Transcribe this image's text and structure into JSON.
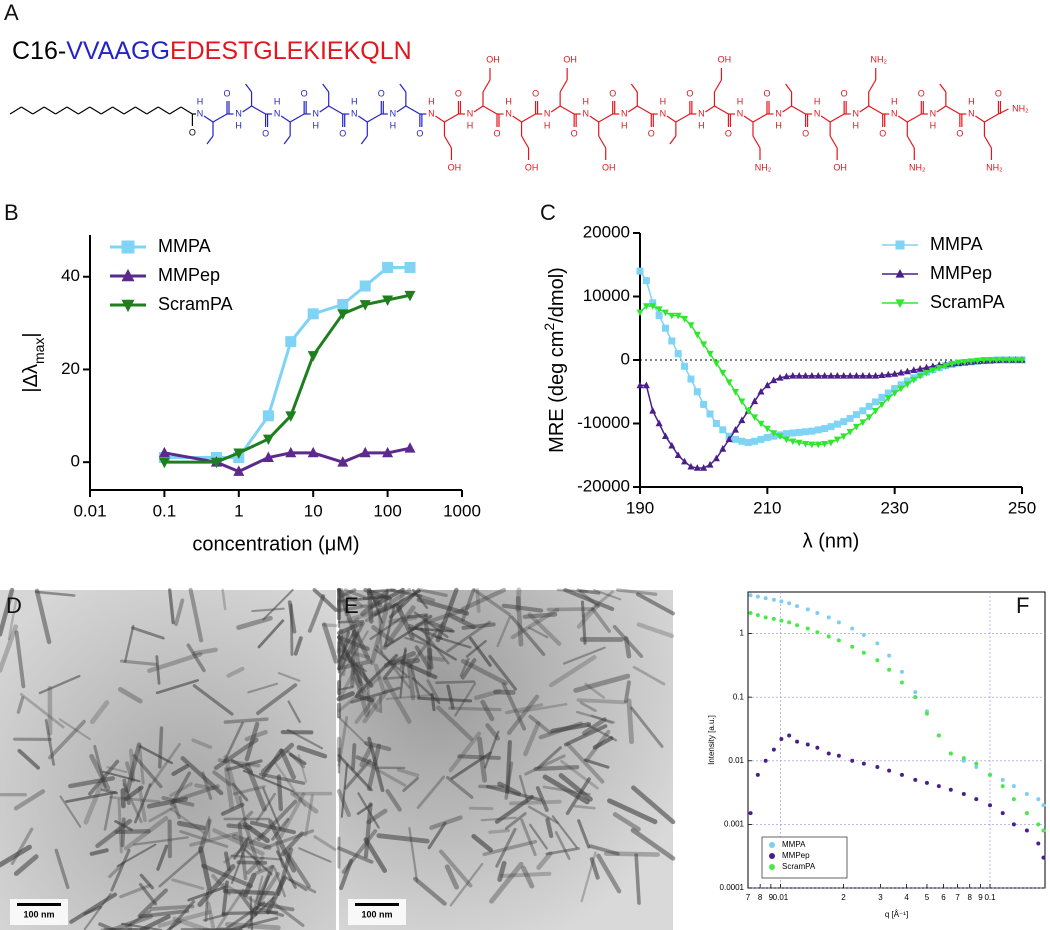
{
  "panel_labels": [
    "A",
    "B",
    "C",
    "D",
    "E",
    "F"
  ],
  "sequence": {
    "parts": [
      {
        "text": "C16-",
        "color": "#000000"
      },
      {
        "text": "VVAAGG",
        "color": "#2323c8"
      },
      {
        "text": "EDESTGLEKIEKQLN",
        "color": "#e3161d"
      }
    ]
  },
  "structure": {
    "backbone": {
      "n": "N",
      "h": "H",
      "o": "O"
    },
    "terminal_label": "NH₂",
    "side_chain_labels": [
      null,
      null,
      null,
      null,
      null,
      null,
      "OH",
      "OH",
      "OH",
      "OH",
      "OH",
      null,
      null,
      "OH",
      "NH₂",
      null,
      "OH",
      "NH₂",
      "NH₂",
      null,
      "NH₂"
    ]
  },
  "scale_bars": [
    "100 nm",
    "100 nm"
  ],
  "chart_data": [
    {
      "type": "line",
      "xlabel": "concentration (μM)",
      "ylabel": [
        "|Δλ",
        "max",
        "|"
      ],
      "xscale": "log",
      "xlim": [
        0.01,
        1000
      ],
      "xticks": [
        0.01,
        0.1,
        1,
        10,
        100,
        1000
      ],
      "ylim": [
        -6,
        49
      ],
      "yticks": [
        0,
        20,
        40
      ],
      "legend": "upper left",
      "x": [
        0.1,
        0.5,
        1,
        2.5,
        5,
        10,
        25,
        50,
        100,
        200
      ],
      "series": [
        {
          "name": "MMPA",
          "color": "#7fd3f4",
          "marker": "square",
          "values": [
            1,
            1,
            1,
            10,
            26,
            32,
            34,
            38,
            42,
            42
          ]
        },
        {
          "name": "MMPep",
          "color": "#5b2a8c",
          "marker": "triangle-up",
          "values": [
            2,
            0,
            -2,
            1,
            2,
            2,
            0,
            2,
            2,
            3
          ]
        },
        {
          "name": "ScramPA",
          "color": "#1f7f1f",
          "marker": "triangle-down",
          "values": [
            0,
            0,
            2,
            5,
            10,
            23,
            32,
            34,
            35,
            36
          ]
        }
      ]
    },
    {
      "type": "line",
      "xlabel": "λ (nm)",
      "ylabel": [
        "MRE (deg cm",
        "2",
        "/dmol)"
      ],
      "xlim": [
        190,
        250
      ],
      "xticks": [
        190,
        210,
        230,
        250
      ],
      "ylim": [
        -20000,
        20000
      ],
      "yticks": [
        -20000,
        -10000,
        0,
        10000,
        20000
      ],
      "zero_line": true,
      "legend": "upper right",
      "x": [
        190,
        191,
        192,
        193,
        194,
        195,
        196,
        197,
        198,
        199,
        200,
        201,
        202,
        203,
        204,
        205,
        206,
        207,
        208,
        209,
        210,
        211,
        212,
        213,
        214,
        215,
        216,
        217,
        218,
        219,
        220,
        221,
        222,
        223,
        224,
        225,
        226,
        227,
        228,
        229,
        230,
        231,
        232,
        233,
        234,
        235,
        236,
        237,
        238,
        239,
        240,
        241,
        242,
        243,
        244,
        245,
        246,
        247,
        248,
        249,
        250
      ],
      "series": [
        {
          "name": "MMPA",
          "color": "#7fd3f4",
          "marker": "square",
          "values": [
            14000,
            12500,
            9000,
            7000,
            5000,
            3000,
            1000,
            -1000,
            -3000,
            -5000,
            -7000,
            -8500,
            -10000,
            -11000,
            -12000,
            -12500,
            -12800,
            -13000,
            -12800,
            -12500,
            -12200,
            -12000,
            -11800,
            -11600,
            -11500,
            -11400,
            -11300,
            -11200,
            -11000,
            -10800,
            -10500,
            -10100,
            -9700,
            -9200,
            -8600,
            -8000,
            -7300,
            -6600,
            -5900,
            -5200,
            -4500,
            -3900,
            -3300,
            -2800,
            -2300,
            -1900,
            -1500,
            -1200,
            -900,
            -700,
            -500,
            -400,
            -300,
            -200,
            -100,
            -100,
            0,
            0,
            0,
            0,
            0
          ]
        },
        {
          "name": "MMPep",
          "color": "#4b1f8a",
          "marker": "triangle-up",
          "values": [
            -4000,
            -4000,
            -8000,
            -10000,
            -12000,
            -13500,
            -15000,
            -16000,
            -16800,
            -17000,
            -17000,
            -16500,
            -15500,
            -14000,
            -12500,
            -11000,
            -9500,
            -8000,
            -6500,
            -5000,
            -4000,
            -3200,
            -2800,
            -2600,
            -2500,
            -2500,
            -2500,
            -2500,
            -2500,
            -2500,
            -2500,
            -2500,
            -2500,
            -2500,
            -2500,
            -2500,
            -2500,
            -2500,
            -2400,
            -2300,
            -2200,
            -2000,
            -1800,
            -1600,
            -1400,
            -1200,
            -1000,
            -800,
            -700,
            -600,
            -500,
            -400,
            -300,
            -200,
            -150,
            -100,
            -50,
            0,
            0,
            0,
            0
          ]
        },
        {
          "name": "ScramPA",
          "color": "#2ee82e",
          "marker": "triangle-down",
          "values": [
            7500,
            8500,
            8500,
            8000,
            7500,
            7000,
            7000,
            6500,
            5500,
            4000,
            2500,
            1000,
            -500,
            -2000,
            -3500,
            -5000,
            -6500,
            -8000,
            -9000,
            -10000,
            -10800,
            -11500,
            -12000,
            -12500,
            -12800,
            -13000,
            -13200,
            -13300,
            -13300,
            -13200,
            -13000,
            -12500,
            -12000,
            -11300,
            -10500,
            -9800,
            -9000,
            -8000,
            -7000,
            -6000,
            -5200,
            -4500,
            -3800,
            -3100,
            -2500,
            -2000,
            -1600,
            -1200,
            -900,
            -600,
            -400,
            -300,
            -200,
            -100,
            0,
            0,
            0,
            0,
            0,
            0,
            0
          ]
        }
      ]
    },
    {
      "type": "scatter",
      "xlabel": "q [Å⁻¹]",
      "ylabel": "Intensity [a.u.]",
      "xscale": "log",
      "yscale": "log",
      "grid": true,
      "legend": "lower left",
      "xlim": [
        0.007,
        0.183
      ],
      "xticks": [
        {
          "value": 0.007,
          "label": "7"
        },
        {
          "value": 0.008,
          "label": "8"
        },
        {
          "value": 0.009,
          "label": "9"
        },
        0.01,
        {
          "value": 0.02,
          "label": "2"
        },
        {
          "value": 0.03,
          "label": "3"
        },
        {
          "value": 0.04,
          "label": "4"
        },
        {
          "value": 0.05,
          "label": "5"
        },
        {
          "value": 0.06,
          "label": "6"
        },
        {
          "value": 0.07,
          "label": "7"
        },
        {
          "value": 0.08,
          "label": "8"
        },
        {
          "value": 0.09,
          "label": "9"
        },
        0.1
      ],
      "ylim": [
        0.0001,
        4.5
      ],
      "yticks": [
        0.0001,
        0.001,
        0.01,
        0.1,
        1
      ],
      "x": [
        0.0072,
        0.0078,
        0.0085,
        0.0093,
        0.0101,
        0.011,
        0.012,
        0.0135,
        0.015,
        0.017,
        0.019,
        0.022,
        0.025,
        0.029,
        0.033,
        0.038,
        0.044,
        0.05,
        0.057,
        0.065,
        0.075,
        0.086,
        0.1,
        0.115,
        0.13,
        0.15,
        0.17,
        0.18
      ],
      "series": [
        {
          "name": "MMPA",
          "color": "#7fcdf0",
          "values": [
            4.0,
            3.8,
            3.6,
            3.4,
            3.2,
            3.0,
            2.7,
            2.4,
            2.1,
            1.8,
            1.5,
            1.2,
            0.95,
            0.7,
            0.45,
            0.25,
            0.12,
            0.06,
            0.025,
            0.013,
            0.01,
            0.008,
            0.006,
            0.005,
            0.004,
            0.003,
            0.0025,
            0.002
          ]
        },
        {
          "name": "MMPep",
          "color": "#4b1f8a",
          "values": [
            0.0015,
            0.006,
            0.01,
            0.015,
            0.022,
            0.025,
            0.02,
            0.018,
            0.016,
            0.013,
            0.012,
            0.01,
            0.009,
            0.008,
            0.007,
            0.006,
            0.005,
            0.0045,
            0.004,
            0.0035,
            0.003,
            0.0025,
            0.002,
            0.0015,
            0.001,
            0.0008,
            0.0005,
            0.0003
          ]
        },
        {
          "name": "ScramPA",
          "color": "#4be84b",
          "values": [
            2.1,
            1.95,
            1.8,
            1.7,
            1.6,
            1.5,
            1.35,
            1.2,
            1.05,
            0.9,
            0.78,
            0.62,
            0.5,
            0.38,
            0.27,
            0.17,
            0.1,
            0.055,
            0.025,
            0.013,
            0.011,
            0.009,
            0.006,
            0.004,
            0.0025,
            0.0015,
            0.001,
            0.0008
          ]
        }
      ]
    }
  ]
}
